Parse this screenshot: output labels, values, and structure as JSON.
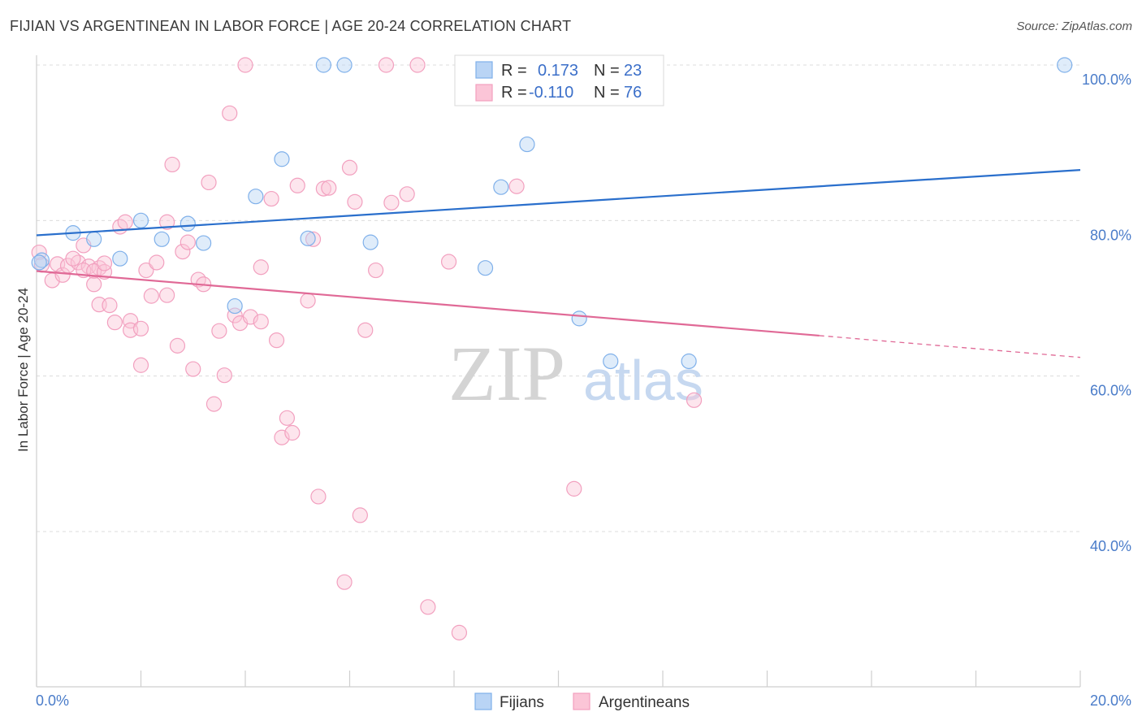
{
  "header": {
    "title": "FIJIAN VS ARGENTINEAN IN LABOR FORCE | AGE 20-24 CORRELATION CHART",
    "source": "Source: ZipAtlas.com"
  },
  "watermark": {
    "zip": "ZIP",
    "atlas": "atlas"
  },
  "legend": {
    "rows": [
      {
        "r_label": "R =",
        "r_value": "0.173",
        "n_label": "N =",
        "n_value": "23"
      },
      {
        "r_label": "R =",
        "r_value": "-0.110",
        "n_label": "N =",
        "n_value": "76"
      }
    ]
  },
  "bottom_legend": {
    "fijians": "Fijians",
    "argentineans": "Argentineans"
  },
  "chart_data": {
    "type": "scatter",
    "title": "FIJIAN VS ARGENTINEAN IN LABOR FORCE | AGE 20-24 CORRELATION CHART",
    "ylabel": "In Labor Force | Age 20-24",
    "xlim": [
      0,
      20
    ],
    "ylim": [
      20,
      102
    ],
    "x_tick_labels": [
      "0.0%",
      "20.0%"
    ],
    "y_ticks": [
      40,
      60,
      80,
      100
    ],
    "y_tick_labels": [
      "40.0%",
      "60.0%",
      "80.0%",
      "100.0%"
    ],
    "grid": true,
    "colors": {
      "fijians": "#7fb0ea",
      "argentineans": "#f2a0bf",
      "fijians_line": "#2a6fcc",
      "argentineans_line": "#e06996"
    },
    "series": [
      {
        "name": "Fijians",
        "r": 0.173,
        "n": 23,
        "trend": {
          "x": [
            0,
            20
          ],
          "y": [
            78.1,
            86.5
          ]
        },
        "points": [
          {
            "x": 0.1,
            "y": 74.9
          },
          {
            "x": 0.7,
            "y": 78.4
          },
          {
            "x": 1.1,
            "y": 77.6
          },
          {
            "x": 1.6,
            "y": 75.1
          },
          {
            "x": 2.0,
            "y": 80.0
          },
          {
            "x": 2.4,
            "y": 77.6
          },
          {
            "x": 2.9,
            "y": 79.6
          },
          {
            "x": 3.2,
            "y": 77.1
          },
          {
            "x": 3.8,
            "y": 69.0
          },
          {
            "x": 4.2,
            "y": 83.1
          },
          {
            "x": 4.7,
            "y": 87.9
          },
          {
            "x": 5.2,
            "y": 77.7
          },
          {
            "x": 5.5,
            "y": 100.0
          },
          {
            "x": 5.9,
            "y": 100.0
          },
          {
            "x": 6.4,
            "y": 77.2
          },
          {
            "x": 8.6,
            "y": 73.9
          },
          {
            "x": 8.9,
            "y": 84.3
          },
          {
            "x": 9.4,
            "y": 89.8
          },
          {
            "x": 10.4,
            "y": 67.4
          },
          {
            "x": 11.0,
            "y": 61.9
          },
          {
            "x": 12.5,
            "y": 61.9
          },
          {
            "x": 19.7,
            "y": 100.0
          },
          {
            "x": 0.05,
            "y": 74.6
          }
        ]
      },
      {
        "name": "Argentineans",
        "r": -0.11,
        "n": 76,
        "trend": {
          "x": [
            0,
            15
          ],
          "y": [
            73.5,
            65.2
          ]
        },
        "trend_dashed": {
          "x": [
            15,
            20
          ],
          "y": [
            65.2,
            62.4
          ]
        },
        "points": [
          {
            "x": 0.05,
            "y": 75.9
          },
          {
            "x": 0.1,
            "y": 74.3
          },
          {
            "x": 0.3,
            "y": 72.3
          },
          {
            "x": 0.4,
            "y": 74.4
          },
          {
            "x": 0.5,
            "y": 73.0
          },
          {
            "x": 0.6,
            "y": 74.2
          },
          {
            "x": 0.8,
            "y": 74.6
          },
          {
            "x": 1.0,
            "y": 74.1
          },
          {
            "x": 1.2,
            "y": 73.9
          },
          {
            "x": 0.9,
            "y": 73.6
          },
          {
            "x": 0.7,
            "y": 75.1
          },
          {
            "x": 0.9,
            "y": 76.8
          },
          {
            "x": 1.1,
            "y": 73.5
          },
          {
            "x": 1.3,
            "y": 73.4
          },
          {
            "x": 1.1,
            "y": 71.8
          },
          {
            "x": 1.3,
            "y": 74.5
          },
          {
            "x": 1.2,
            "y": 69.2
          },
          {
            "x": 1.4,
            "y": 69.1
          },
          {
            "x": 1.5,
            "y": 66.9
          },
          {
            "x": 1.6,
            "y": 79.2
          },
          {
            "x": 1.7,
            "y": 79.8
          },
          {
            "x": 1.8,
            "y": 67.1
          },
          {
            "x": 1.8,
            "y": 65.9
          },
          {
            "x": 2.0,
            "y": 61.4
          },
          {
            "x": 2.0,
            "y": 66.1
          },
          {
            "x": 2.1,
            "y": 73.6
          },
          {
            "x": 2.2,
            "y": 70.3
          },
          {
            "x": 2.3,
            "y": 74.6
          },
          {
            "x": 2.5,
            "y": 79.8
          },
          {
            "x": 2.5,
            "y": 70.4
          },
          {
            "x": 2.6,
            "y": 87.2
          },
          {
            "x": 2.7,
            "y": 63.9
          },
          {
            "x": 2.8,
            "y": 76.0
          },
          {
            "x": 2.9,
            "y": 77.2
          },
          {
            "x": 3.0,
            "y": 60.9
          },
          {
            "x": 3.1,
            "y": 72.4
          },
          {
            "x": 3.2,
            "y": 71.8
          },
          {
            "x": 3.3,
            "y": 84.9
          },
          {
            "x": 3.4,
            "y": 56.4
          },
          {
            "x": 3.5,
            "y": 65.8
          },
          {
            "x": 3.6,
            "y": 60.1
          },
          {
            "x": 3.7,
            "y": 93.8
          },
          {
            "x": 3.8,
            "y": 67.8
          },
          {
            "x": 3.9,
            "y": 66.8
          },
          {
            "x": 4.0,
            "y": 100.0
          },
          {
            "x": 4.1,
            "y": 67.6
          },
          {
            "x": 4.3,
            "y": 67.0
          },
          {
            "x": 4.3,
            "y": 74.0
          },
          {
            "x": 4.5,
            "y": 82.8
          },
          {
            "x": 4.6,
            "y": 64.6
          },
          {
            "x": 4.7,
            "y": 52.1
          },
          {
            "x": 4.8,
            "y": 54.6
          },
          {
            "x": 4.9,
            "y": 52.7
          },
          {
            "x": 5.0,
            "y": 84.5
          },
          {
            "x": 5.2,
            "y": 69.7
          },
          {
            "x": 5.3,
            "y": 77.6
          },
          {
            "x": 5.4,
            "y": 44.5
          },
          {
            "x": 5.5,
            "y": 84.1
          },
          {
            "x": 5.6,
            "y": 84.2
          },
          {
            "x": 5.9,
            "y": 33.5
          },
          {
            "x": 6.0,
            "y": 86.8
          },
          {
            "x": 6.1,
            "y": 82.4
          },
          {
            "x": 6.2,
            "y": 42.1
          },
          {
            "x": 6.3,
            "y": 65.9
          },
          {
            "x": 6.5,
            "y": 73.6
          },
          {
            "x": 6.7,
            "y": 100.0
          },
          {
            "x": 6.8,
            "y": 82.3
          },
          {
            "x": 7.1,
            "y": 83.4
          },
          {
            "x": 7.3,
            "y": 100.0
          },
          {
            "x": 7.5,
            "y": 30.3
          },
          {
            "x": 7.9,
            "y": 74.7
          },
          {
            "x": 8.1,
            "y": 27.0
          },
          {
            "x": 9.2,
            "y": 84.4
          },
          {
            "x": 9.5,
            "y": 100.0
          },
          {
            "x": 10.3,
            "y": 45.5
          },
          {
            "x": 12.6,
            "y": 56.9
          }
        ]
      }
    ]
  }
}
